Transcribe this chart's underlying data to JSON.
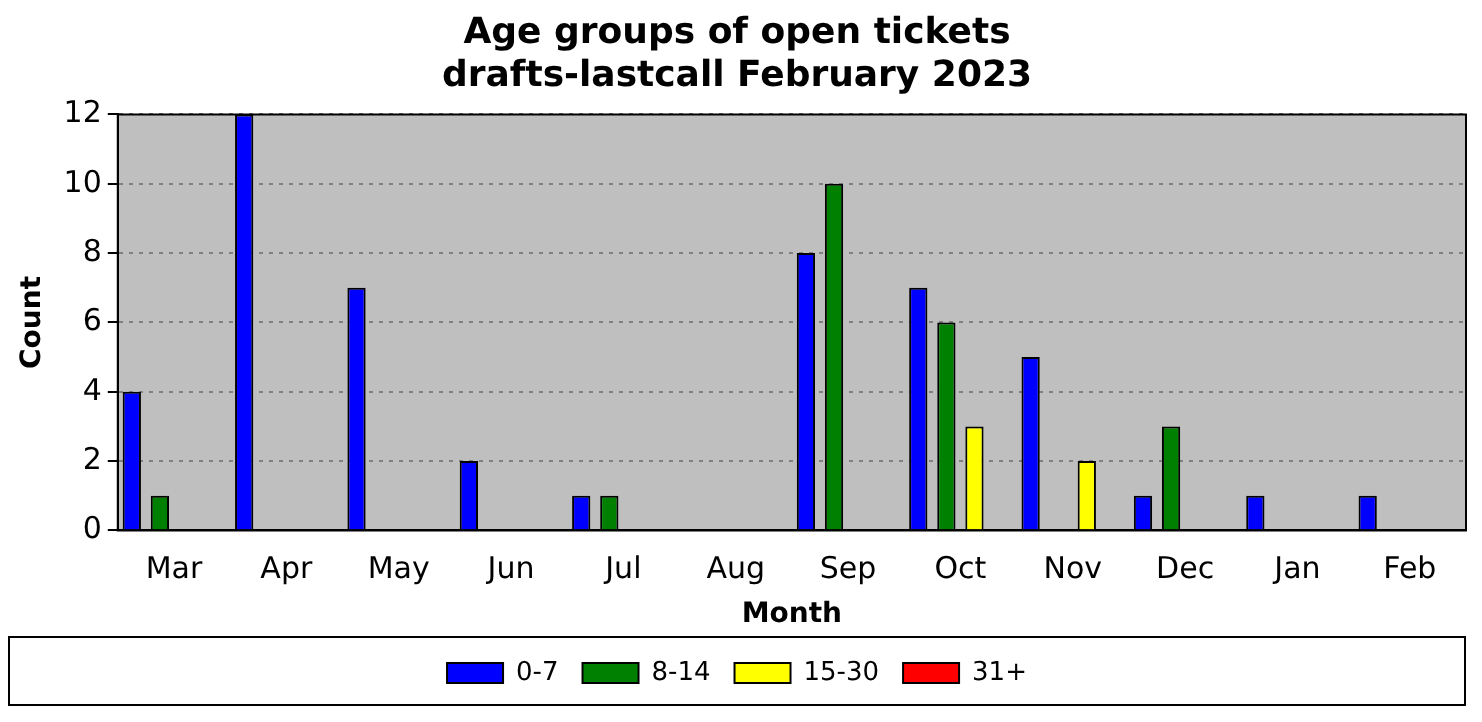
{
  "chart_data": {
    "type": "bar",
    "title": "Age groups of open tickets\ndrafts-lastcall February 2023",
    "xlabel": "Month",
    "ylabel": "Count",
    "categories": [
      "Mar",
      "Apr",
      "May",
      "Jun",
      "Jul",
      "Aug",
      "Sep",
      "Oct",
      "Nov",
      "Dec",
      "Jan",
      "Feb"
    ],
    "series": [
      {
        "name": "0-7",
        "color": "#0000ff",
        "values": [
          4,
          12,
          7,
          2,
          1,
          0,
          8,
          7,
          5,
          1,
          1,
          1
        ]
      },
      {
        "name": "8-14",
        "color": "#008000",
        "values": [
          1,
          0,
          0,
          0,
          1,
          0,
          10,
          6,
          0,
          3,
          0,
          0
        ]
      },
      {
        "name": "15-30",
        "color": "#ffff00",
        "values": [
          0,
          0,
          0,
          0,
          0,
          0,
          0,
          3,
          2,
          0,
          0,
          0
        ]
      },
      {
        "name": "31+",
        "color": "#ff0000",
        "values": [
          0,
          0,
          0,
          0,
          0,
          0,
          0,
          0,
          0,
          0,
          0,
          0
        ]
      }
    ],
    "ylim": [
      0,
      12
    ],
    "yticks": [
      0,
      2,
      4,
      6,
      8,
      10,
      12
    ],
    "grid": "y",
    "legend": "bottom"
  }
}
